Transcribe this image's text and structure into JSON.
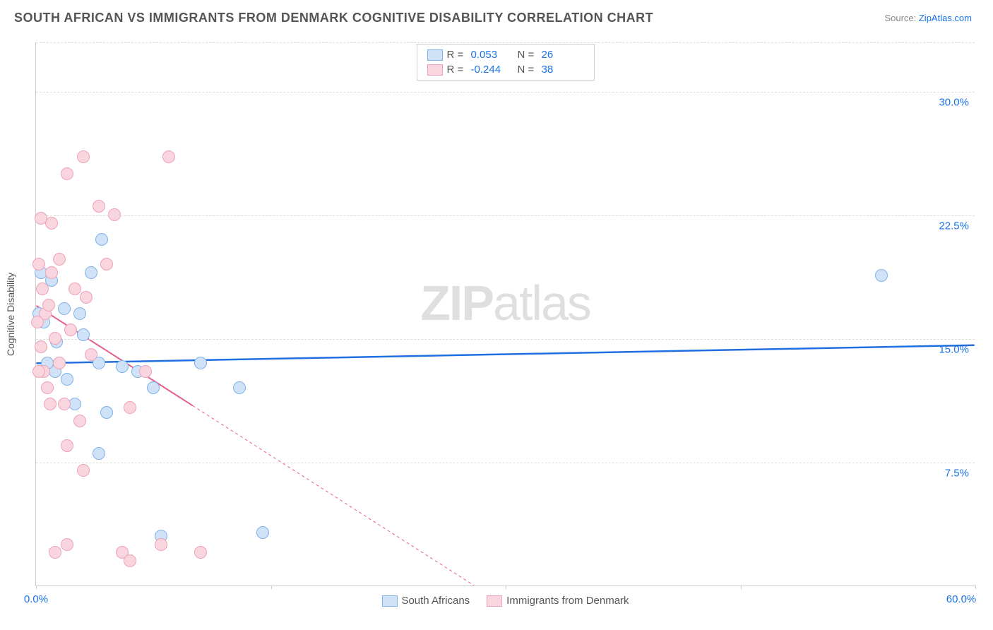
{
  "title": "SOUTH AFRICAN VS IMMIGRANTS FROM DENMARK COGNITIVE DISABILITY CORRELATION CHART",
  "source_prefix": "Source: ",
  "source_link": "ZipAtlas.com",
  "y_axis_title": "Cognitive Disability",
  "watermark_a": "ZIP",
  "watermark_b": "atlas",
  "chart": {
    "type": "scatter",
    "xlim": [
      0,
      60
    ],
    "ylim": [
      0,
      33
    ],
    "x_ticks": [
      0,
      15,
      30,
      45,
      60
    ],
    "x_tick_labels": [
      "0.0%",
      "",
      "",
      "",
      "60.0%"
    ],
    "y_gridlines": [
      7.5,
      15.0,
      22.5,
      30.0
    ],
    "y_tick_labels": [
      "7.5%",
      "15.0%",
      "22.5%",
      "30.0%"
    ],
    "background_color": "#ffffff",
    "grid_color": "#dddddd",
    "axis_color": "#cccccc",
    "label_color": "#1a73e8",
    "marker_radius": 9,
    "marker_stroke_width": 1.5,
    "series": [
      {
        "key": "sa",
        "name": "South Africans",
        "fill": "#cfe2f8",
        "stroke": "#7fb2e8",
        "stats": {
          "R": "0.053",
          "N": "26"
        },
        "trend": {
          "x1": 0,
          "y1": 13.5,
          "x2": 60,
          "y2": 14.6,
          "solid_until": 60,
          "color": "#1f6fe0",
          "width": 2.5
        },
        "points": [
          [
            0.3,
            19.0
          ],
          [
            0.5,
            16.0
          ],
          [
            1.0,
            18.5
          ],
          [
            1.3,
            14.8
          ],
          [
            1.8,
            16.8
          ],
          [
            1.5,
            13.5
          ],
          [
            2.0,
            12.5
          ],
          [
            2.5,
            11.0
          ],
          [
            3.0,
            15.2
          ],
          [
            3.5,
            19.0
          ],
          [
            4.2,
            21.0
          ],
          [
            4.0,
            13.5
          ],
          [
            4.5,
            10.5
          ],
          [
            5.5,
            13.3
          ],
          [
            6.5,
            13.0
          ],
          [
            7.5,
            12.0
          ],
          [
            8.0,
            3.0
          ],
          [
            10.5,
            13.5
          ],
          [
            13.0,
            12.0
          ],
          [
            14.5,
            3.2
          ],
          [
            4.0,
            8.0
          ],
          [
            2.8,
            16.5
          ],
          [
            1.2,
            13.0
          ],
          [
            0.7,
            13.5
          ],
          [
            0.2,
            16.5
          ],
          [
            54.0,
            18.8
          ]
        ]
      },
      {
        "key": "dk",
        "name": "Immigrants from Denmark",
        "fill": "#f9d6df",
        "stroke": "#efa2b6",
        "stats": {
          "R": "-0.244",
          "N": "38"
        },
        "trend": {
          "x1": 0,
          "y1": 17.0,
          "x2": 28,
          "y2": 0,
          "solid_until": 10,
          "color": "#e85d8c",
          "width": 2
        },
        "points": [
          [
            0.2,
            19.5
          ],
          [
            0.4,
            18.0
          ],
          [
            0.6,
            16.5
          ],
          [
            0.8,
            17.0
          ],
          [
            1.0,
            19.0
          ],
          [
            1.2,
            15.0
          ],
          [
            0.3,
            14.5
          ],
          [
            0.5,
            13.0
          ],
          [
            0.7,
            12.0
          ],
          [
            0.9,
            11.0
          ],
          [
            1.5,
            13.5
          ],
          [
            1.8,
            11.0
          ],
          [
            2.2,
            15.5
          ],
          [
            2.5,
            18.0
          ],
          [
            2.8,
            10.0
          ],
          [
            3.2,
            17.5
          ],
          [
            3.5,
            14.0
          ],
          [
            4.0,
            23.0
          ],
          [
            4.5,
            19.5
          ],
          [
            5.0,
            22.5
          ],
          [
            6.0,
            10.8
          ],
          [
            7.0,
            13.0
          ],
          [
            8.5,
            26.0
          ],
          [
            3.0,
            26.0
          ],
          [
            2.0,
            25.0
          ],
          [
            1.0,
            22.0
          ],
          [
            1.5,
            19.8
          ],
          [
            0.3,
            22.3
          ],
          [
            1.2,
            2.0
          ],
          [
            2.0,
            2.5
          ],
          [
            5.5,
            2.0
          ],
          [
            6.0,
            1.5
          ],
          [
            8.0,
            2.5
          ],
          [
            10.5,
            2.0
          ],
          [
            3.0,
            7.0
          ],
          [
            2.0,
            8.5
          ],
          [
            0.1,
            16.0
          ],
          [
            0.2,
            13.0
          ]
        ]
      }
    ]
  },
  "stats_labels": {
    "R": "R =",
    "N": "N ="
  }
}
